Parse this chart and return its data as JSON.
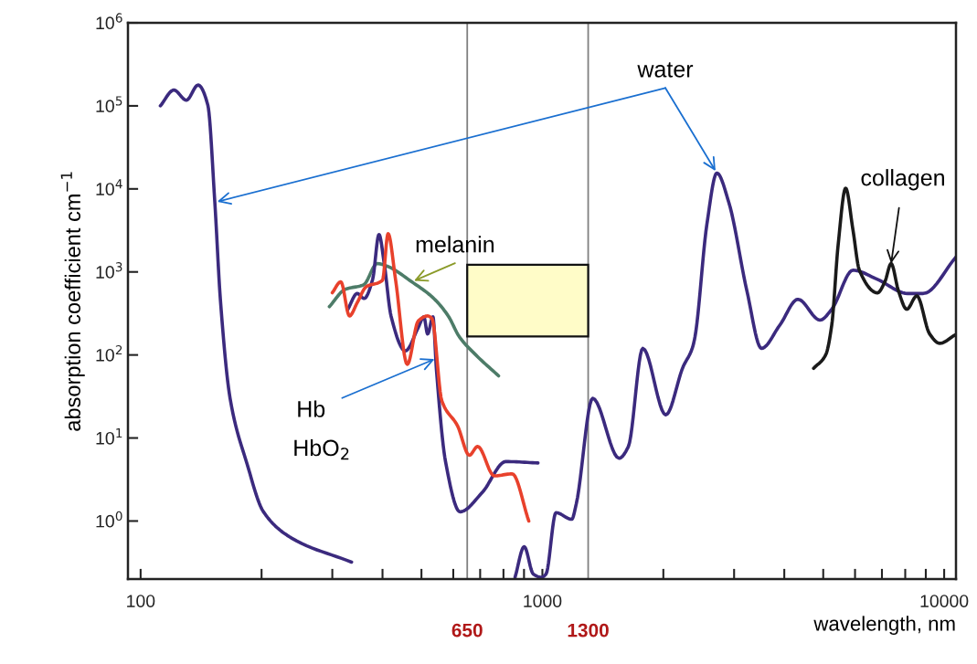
{
  "chart_data": {
    "type": "line",
    "xlabel": "wavelength, nm",
    "ylabel": "absorption coefficient cm$^{−1}$",
    "log": "xy",
    "grid": false,
    "marker": "none",
    "line_style": "solid",
    "xlim": [
      93,
      10700
    ],
    "ylim": [
      0.2,
      1000000
    ],
    "xticks": [
      100,
      {
        "value": 200,
        "label": null
      },
      {
        "value": 300,
        "label": null
      },
      {
        "value": 400,
        "label": null
      },
      {
        "value": 500,
        "label": null
      },
      {
        "value": 600,
        "label": null
      },
      {
        "value": 700,
        "label": null
      },
      {
        "value": 800,
        "label": null
      },
      {
        "value": 900,
        "label": null
      },
      1000,
      {
        "value": 2000,
        "label": null
      },
      {
        "value": 3000,
        "label": null
      },
      {
        "value": 4000,
        "label": null
      },
      {
        "value": 5000,
        "label": null
      },
      {
        "value": 6000,
        "label": null
      },
      {
        "value": 7000,
        "label": null
      },
      {
        "value": 8000,
        "label": null
      },
      {
        "value": 9000,
        "label": null
      },
      10000
    ],
    "yticks": [
      {
        "value": 1,
        "label": "10$^{0}$"
      },
      {
        "value": 10,
        "label": "10$^{1}$"
      },
      {
        "value": 100,
        "label": "10$^{2}$"
      },
      {
        "value": 1000,
        "label": "10$^{3}$"
      },
      {
        "value": 10000,
        "label": "10$^{4}$"
      },
      {
        "value": 100000,
        "label": "10$^{5}$"
      },
      {
        "value": 1000000,
        "label": "10$^{6}$"
      }
    ],
    "series": [
      {
        "color": "#3b2a7e",
        "x": [
          112,
          121,
          130,
          139,
          147,
          153,
          158,
          167,
          184,
          202,
          238,
          335
        ],
        "values": [
          100000,
          155000,
          117000,
          178000,
          102000,
          6900,
          457,
          30,
          4.9,
          1.3,
          0.62,
          0.32
        ]
      },
      {
        "color": "#3b2a7e",
        "x": [
          855,
          901,
          949,
          995,
          1021,
          1081,
          1183,
          1214,
          1334,
          1552,
          1637,
          1778,
          2028,
          2240,
          2360,
          2398,
          2566,
          2718,
          2910,
          3229,
          3510,
          3899,
          4325,
          4909,
          5250,
          5929,
          6823,
          8110,
          8870,
          10700
        ],
        "values": [
          0.21,
          0.49,
          0.23,
          0.21,
          0.23,
          1.26,
          1.05,
          1.6,
          30,
          5.7,
          7.9,
          120,
          19,
          72,
          120,
          166,
          3700,
          15500,
          6900,
          589,
          120,
          229,
          468,
          263,
          355,
          1048,
          813,
          550,
          550,
          1510
        ]
      },
      {
        "color": "#1a1a1a",
        "x": [
          4732,
          5070,
          5250,
          5445,
          5686,
          5929,
          6150,
          6823,
          7118,
          7379,
          7695,
          8070,
          8550,
          9200,
          9750,
          10640
        ],
        "values": [
          69,
          100,
          229,
          2090,
          10200,
          3200,
          1050,
          560,
          760,
          1260,
          590,
          355,
          515,
          179,
          138,
          174
        ]
      },
      {
        "color": "#4d7c68",
        "x": [
          295,
          323,
          359,
          388,
          411,
          473,
          534,
          583,
          621,
          683,
          778
        ],
        "values": [
          382,
          617,
          700,
          1260,
          1170,
          760,
          490,
          295,
          166,
          100,
          56
        ]
      },
      {
        "color": "#3b2a7e",
        "x": [
          328,
          346,
          360,
          378,
          392,
          404,
          420,
          456,
          491,
          507,
          518,
          534,
          545,
          574,
          624,
          708,
          811,
          975
        ],
        "values": [
          355,
          550,
          479,
          813,
          2820,
          1260,
          295,
          112,
          214,
          288,
          179,
          288,
          65,
          5.2,
          1.29,
          2.2,
          5.2,
          5.0
        ]
      },
      {
        "color": "#e8412c",
        "x": [
          300,
          315,
          331,
          346,
          364,
          400,
          413,
          431,
          461,
          491,
          518,
          531,
          562,
          615,
          658,
          690,
          759,
          841,
          925
        ],
        "values": [
          562,
          760,
          295,
          426,
          661,
          794,
          2890,
          813,
          77,
          257,
          295,
          275,
          28,
          14,
          6.2,
          7.9,
          3.5,
          3.7,
          1.0
        ]
      }
    ],
    "ref_lines": [
      {
        "axis": "x",
        "value": 650,
        "label": "650",
        "color": "#808080"
      },
      {
        "axis": "x",
        "value": 1300,
        "label": "1300",
        "color": "#808080"
      }
    ],
    "annotations": [
      "water",
      "melanin",
      {
        "text": "collagen",
        "x": 7379,
        "y": 1260
      },
      {
        "text": "Hb",
        "x": 539,
        "y": 89
      },
      "HbO$_{2}$"
    ]
  }
}
